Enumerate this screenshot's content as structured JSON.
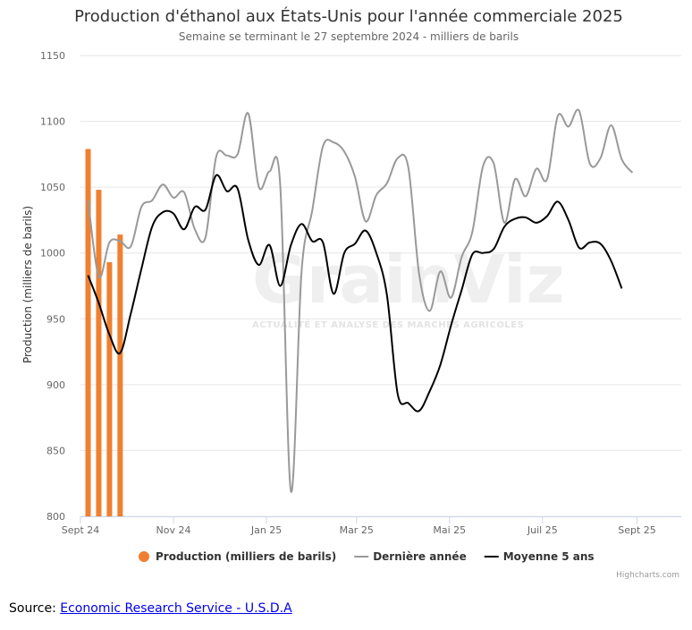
{
  "chart_data": {
    "type": "line",
    "title": "Production d'éthanol aux États-Unis pour l'année commerciale 2025",
    "subtitle": "Semaine se terminant le 27 septembre 2024 - milliers de barils",
    "ylabel": "Production (milliers de barils)",
    "xlabel": "",
    "ylim": [
      800,
      1150
    ],
    "yticks": [
      800,
      850,
      900,
      950,
      1000,
      1050,
      1100,
      1150
    ],
    "xlim": [
      "2024-09-01",
      "2025-09-30"
    ],
    "xticks": [
      {
        "date": "2024-09-01",
        "label": "Sept 24"
      },
      {
        "date": "2024-11-01",
        "label": "Nov 24"
      },
      {
        "date": "2025-01-01",
        "label": "Jan 25"
      },
      {
        "date": "2025-03-01",
        "label": "Mar 25"
      },
      {
        "date": "2025-05-01",
        "label": "Mai 25"
      },
      {
        "date": "2025-07-01",
        "label": "Juil 25"
      },
      {
        "date": "2025-09-01",
        "label": "Sept 25"
      }
    ],
    "grid": true,
    "legend_position": "bottom",
    "series": [
      {
        "name": "Production (milliers de barils)",
        "type": "column",
        "color": "#f07f2f",
        "points": [
          {
            "x": "2024-09-06",
            "y": 1079
          },
          {
            "x": "2024-09-13",
            "y": 1048
          },
          {
            "x": "2024-09-20",
            "y": 993
          },
          {
            "x": "2024-09-27",
            "y": 1014
          }
        ]
      },
      {
        "name": "Dernière année",
        "type": "line",
        "color": "#999999",
        "points": [
          {
            "x": "2024-09-06",
            "y": 1040
          },
          {
            "x": "2024-09-13",
            "y": 982
          },
          {
            "x": "2024-09-20",
            "y": 1008
          },
          {
            "x": "2024-09-27",
            "y": 1009
          },
          {
            "x": "2024-10-04",
            "y": 1005
          },
          {
            "x": "2024-10-11",
            "y": 1035
          },
          {
            "x": "2024-10-18",
            "y": 1040
          },
          {
            "x": "2024-10-25",
            "y": 1052
          },
          {
            "x": "2024-11-01",
            "y": 1042
          },
          {
            "x": "2024-11-08",
            "y": 1046
          },
          {
            "x": "2024-11-15",
            "y": 1018
          },
          {
            "x": "2024-11-22",
            "y": 1012
          },
          {
            "x": "2024-11-29",
            "y": 1073
          },
          {
            "x": "2024-12-06",
            "y": 1074
          },
          {
            "x": "2024-12-13",
            "y": 1075
          },
          {
            "x": "2024-12-20",
            "y": 1106
          },
          {
            "x": "2024-12-27",
            "y": 1050
          },
          {
            "x": "2025-01-03",
            "y": 1062
          },
          {
            "x": "2025-01-10",
            "y": 1052
          },
          {
            "x": "2025-01-17",
            "y": 819
          },
          {
            "x": "2025-01-24",
            "y": 986
          },
          {
            "x": "2025-01-31",
            "y": 1032
          },
          {
            "x": "2025-02-07",
            "y": 1081
          },
          {
            "x": "2025-02-14",
            "y": 1084
          },
          {
            "x": "2025-02-21",
            "y": 1077
          },
          {
            "x": "2025-02-28",
            "y": 1058
          },
          {
            "x": "2025-03-07",
            "y": 1024
          },
          {
            "x": "2025-03-14",
            "y": 1044
          },
          {
            "x": "2025-03-21",
            "y": 1053
          },
          {
            "x": "2025-03-28",
            "y": 1072
          },
          {
            "x": "2025-04-04",
            "y": 1065
          },
          {
            "x": "2025-04-11",
            "y": 985
          },
          {
            "x": "2025-04-18",
            "y": 956
          },
          {
            "x": "2025-04-25",
            "y": 986
          },
          {
            "x": "2025-05-02",
            "y": 966
          },
          {
            "x": "2025-05-09",
            "y": 997
          },
          {
            "x": "2025-05-16",
            "y": 1016
          },
          {
            "x": "2025-05-23",
            "y": 1066
          },
          {
            "x": "2025-05-30",
            "y": 1068
          },
          {
            "x": "2025-06-06",
            "y": 1023
          },
          {
            "x": "2025-06-13",
            "y": 1056
          },
          {
            "x": "2025-06-20",
            "y": 1043
          },
          {
            "x": "2025-06-27",
            "y": 1064
          },
          {
            "x": "2025-07-04",
            "y": 1056
          },
          {
            "x": "2025-07-11",
            "y": 1104
          },
          {
            "x": "2025-07-18",
            "y": 1096
          },
          {
            "x": "2025-07-25",
            "y": 1108
          },
          {
            "x": "2025-08-01",
            "y": 1068
          },
          {
            "x": "2025-08-08",
            "y": 1072
          },
          {
            "x": "2025-08-15",
            "y": 1097
          },
          {
            "x": "2025-08-22",
            "y": 1071
          },
          {
            "x": "2025-08-29",
            "y": 1061
          }
        ]
      },
      {
        "name": "Moyenne 5 ans",
        "type": "line",
        "color": "#000000",
        "points": [
          {
            "x": "2024-09-06",
            "y": 983
          },
          {
            "x": "2024-09-13",
            "y": 962
          },
          {
            "x": "2024-09-20",
            "y": 938
          },
          {
            "x": "2024-09-27",
            "y": 924
          },
          {
            "x": "2024-10-04",
            "y": 954
          },
          {
            "x": "2024-10-11",
            "y": 988
          },
          {
            "x": "2024-10-18",
            "y": 1020
          },
          {
            "x": "2024-10-25",
            "y": 1031
          },
          {
            "x": "2024-11-01",
            "y": 1030
          },
          {
            "x": "2024-11-08",
            "y": 1018
          },
          {
            "x": "2024-11-15",
            "y": 1035
          },
          {
            "x": "2024-11-22",
            "y": 1033
          },
          {
            "x": "2024-11-29",
            "y": 1059
          },
          {
            "x": "2024-12-06",
            "y": 1047
          },
          {
            "x": "2024-12-13",
            "y": 1049
          },
          {
            "x": "2024-12-20",
            "y": 1010
          },
          {
            "x": "2024-12-27",
            "y": 991
          },
          {
            "x": "2025-01-03",
            "y": 1006
          },
          {
            "x": "2025-01-10",
            "y": 975
          },
          {
            "x": "2025-01-17",
            "y": 1006
          },
          {
            "x": "2025-01-24",
            "y": 1022
          },
          {
            "x": "2025-01-31",
            "y": 1009
          },
          {
            "x": "2025-02-07",
            "y": 1008
          },
          {
            "x": "2025-02-14",
            "y": 969
          },
          {
            "x": "2025-02-21",
            "y": 1000
          },
          {
            "x": "2025-02-28",
            "y": 1007
          },
          {
            "x": "2025-03-07",
            "y": 1017
          },
          {
            "x": "2025-03-14",
            "y": 1000
          },
          {
            "x": "2025-03-21",
            "y": 968
          },
          {
            "x": "2025-03-28",
            "y": 893
          },
          {
            "x": "2025-04-04",
            "y": 886
          },
          {
            "x": "2025-04-11",
            "y": 880
          },
          {
            "x": "2025-04-18",
            "y": 895
          },
          {
            "x": "2025-04-25",
            "y": 915
          },
          {
            "x": "2025-05-02",
            "y": 945
          },
          {
            "x": "2025-05-09",
            "y": 972
          },
          {
            "x": "2025-05-16",
            "y": 999
          },
          {
            "x": "2025-05-23",
            "y": 1000
          },
          {
            "x": "2025-05-30",
            "y": 1003
          },
          {
            "x": "2025-06-06",
            "y": 1020
          },
          {
            "x": "2025-06-13",
            "y": 1026
          },
          {
            "x": "2025-06-20",
            "y": 1027
          },
          {
            "x": "2025-06-27",
            "y": 1023
          },
          {
            "x": "2025-07-04",
            "y": 1028
          },
          {
            "x": "2025-07-11",
            "y": 1039
          },
          {
            "x": "2025-07-18",
            "y": 1025
          },
          {
            "x": "2025-07-25",
            "y": 1004
          },
          {
            "x": "2025-08-01",
            "y": 1008
          },
          {
            "x": "2025-08-08",
            "y": 1007
          },
          {
            "x": "2025-08-15",
            "y": 994
          },
          {
            "x": "2025-08-22",
            "y": 973
          }
        ]
      }
    ]
  },
  "watermark": {
    "brand": "GrainViz",
    "tagline": "ACTUALITÉ ET ANALYSE DES MARCHÉS AGRICOLES"
  },
  "credits": "Highcharts.com",
  "source": {
    "prefix": "Source: ",
    "link_text": "Economic Research Service - U.S.D.A"
  }
}
